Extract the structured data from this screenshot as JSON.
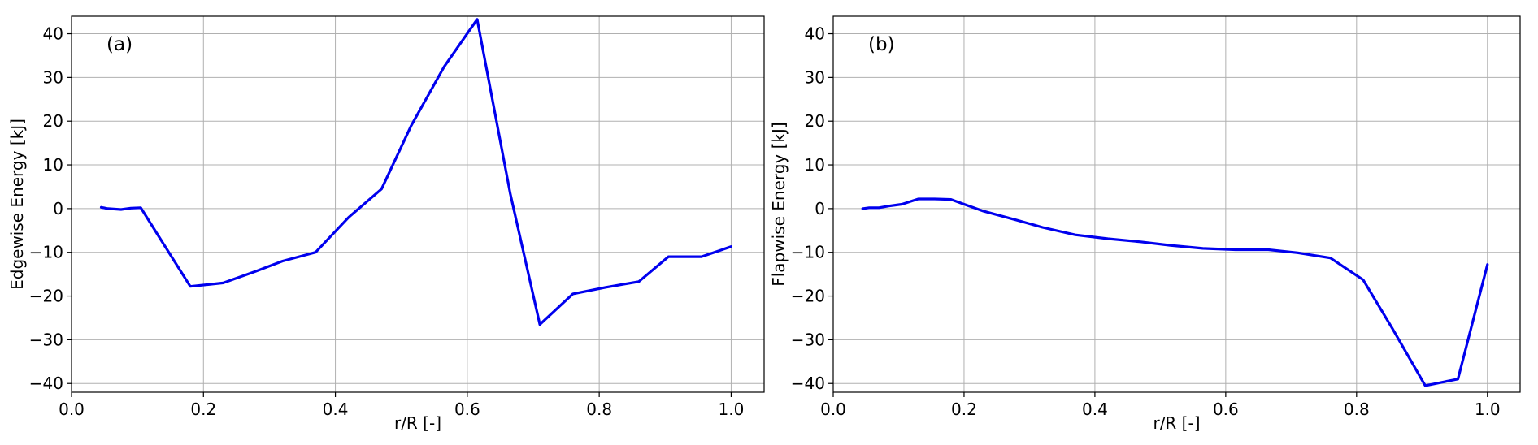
{
  "chart_data": [
    {
      "type": "line",
      "annotation": "(a)",
      "xlabel": "r/R [-]",
      "ylabel": "Edgewise Energy [kJ]",
      "xlim": [
        0.0,
        1.05
      ],
      "ylim": [
        -42,
        44
      ],
      "xticks": [
        0.0,
        0.2,
        0.4,
        0.6,
        0.8,
        1.0
      ],
      "xtick_labels": [
        "0.0",
        "0.2",
        "0.4",
        "0.6",
        "0.8",
        "1.0"
      ],
      "yticks": [
        -40,
        -30,
        -20,
        -10,
        0,
        10,
        20,
        30,
        40
      ],
      "ytick_labels": [
        "−40",
        "−30",
        "−20",
        "−10",
        "0",
        "10",
        "20",
        "30",
        "40"
      ],
      "grid": true,
      "color": "#0000ee",
      "series": [
        {
          "x": [
            0.045,
            0.055,
            0.075,
            0.09,
            0.105,
            0.135,
            0.18,
            0.23,
            0.28,
            0.32,
            0.37,
            0.42,
            0.47,
            0.515,
            0.565,
            0.615,
            0.665,
            0.71,
            0.76,
            0.81,
            0.86,
            0.905,
            0.955,
            1.0
          ],
          "y": [
            0.3,
            0.0,
            -0.2,
            0.1,
            0.2,
            -7.0,
            -17.8,
            -17.0,
            -14.3,
            -12.0,
            -10.0,
            -2.0,
            4.5,
            19.0,
            32.5,
            43.3,
            3.5,
            -26.5,
            -19.5,
            -18.0,
            -16.7,
            -11.0,
            -11.0,
            -8.7
          ]
        }
      ]
    },
    {
      "type": "line",
      "annotation": "(b)",
      "xlabel": "r/R [-]",
      "ylabel": "Flapwise Energy [kJ]",
      "xlim": [
        0.0,
        1.05
      ],
      "ylim": [
        -42,
        44
      ],
      "xticks": [
        0.0,
        0.2,
        0.4,
        0.6,
        0.8,
        1.0
      ],
      "xtick_labels": [
        "0.0",
        "0.2",
        "0.4",
        "0.6",
        "0.8",
        "1.0"
      ],
      "yticks": [
        -40,
        -30,
        -20,
        -10,
        0,
        10,
        20,
        30,
        40
      ],
      "ytick_labels": [
        "−40",
        "−30",
        "−20",
        "−10",
        "0",
        "10",
        "20",
        "30",
        "40"
      ],
      "grid": true,
      "color": "#0000ee",
      "series": [
        {
          "x": [
            0.045,
            0.055,
            0.07,
            0.085,
            0.105,
            0.13,
            0.155,
            0.18,
            0.2,
            0.23,
            0.28,
            0.32,
            0.37,
            0.42,
            0.47,
            0.515,
            0.565,
            0.615,
            0.665,
            0.71,
            0.76,
            0.81,
            0.855,
            0.905,
            0.955,
            1.0
          ],
          "y": [
            0.0,
            0.2,
            0.2,
            0.6,
            1.0,
            2.2,
            2.2,
            2.1,
            1.0,
            -0.6,
            -2.6,
            -4.3,
            -6.0,
            -6.9,
            -7.6,
            -8.4,
            -9.1,
            -9.4,
            -9.4,
            -10.1,
            -11.3,
            -16.3,
            -27.5,
            -40.5,
            -39.0,
            -12.8
          ]
        }
      ]
    }
  ]
}
